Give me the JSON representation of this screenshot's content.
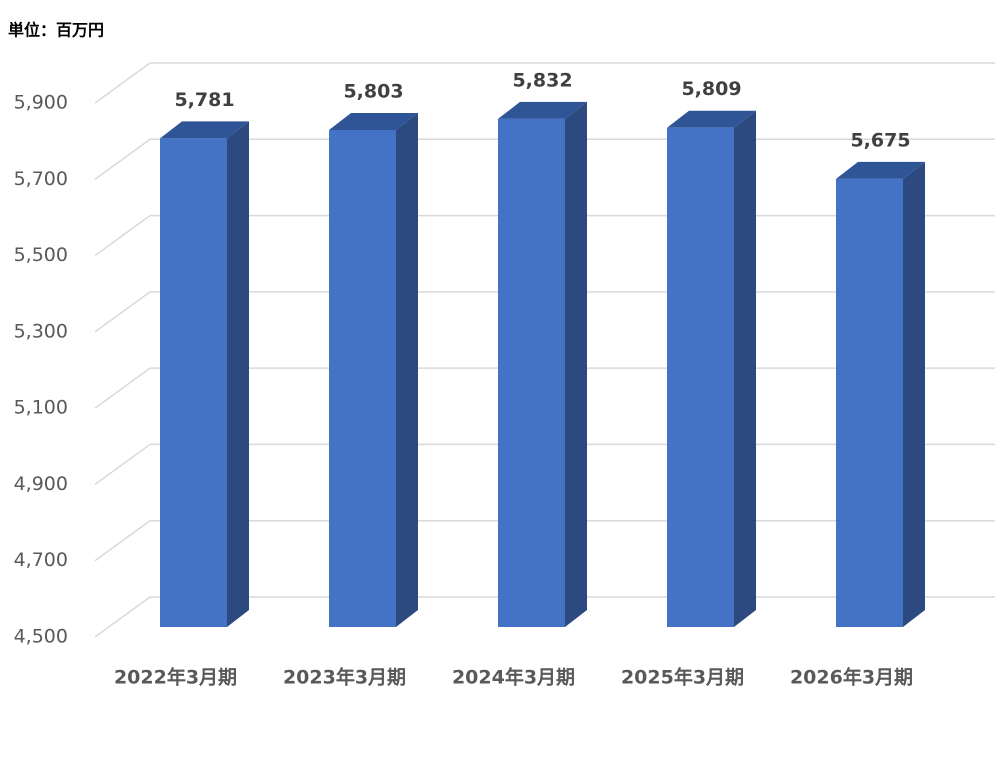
{
  "chart_data": {
    "type": "bar3d",
    "unit": "単位：百万円",
    "categories": [
      "2022年3月期",
      "2023年3月期",
      "2024年3月期",
      "2025年3月期",
      "2026年3月期"
    ],
    "values": [
      5781,
      5803,
      5832,
      5809,
      5675
    ],
    "value_labels": [
      "5,781",
      "5,803",
      "5,832",
      "5,809",
      "5,675"
    ],
    "color": "#4472c4",
    "ylim": [
      4500,
      5900
    ],
    "yticks": [
      {
        "value": 4500,
        "label": "4,500"
      },
      {
        "value": 4700,
        "label": "4,700"
      },
      {
        "value": 4900,
        "label": "4,900"
      },
      {
        "value": 5100,
        "label": "5,100"
      },
      {
        "value": 5300,
        "label": "5,300"
      },
      {
        "value": 5500,
        "label": "5,500"
      },
      {
        "value": 5700,
        "label": "5,700"
      },
      {
        "value": 5900,
        "label": "5,900"
      }
    ],
    "grid": true
  }
}
